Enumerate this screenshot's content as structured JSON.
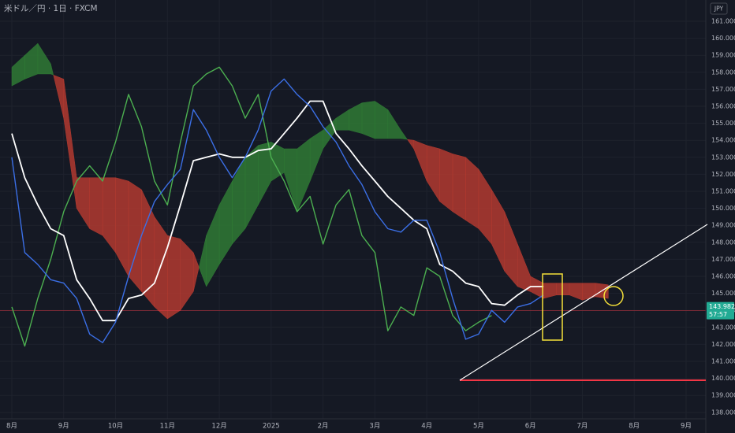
{
  "chart_data": {
    "type": "line",
    "title": "米ドル／円 · 1日 · FXCM",
    "axis_currency": "JPY",
    "categories": [
      "8月",
      null,
      null,
      null,
      "9月",
      null,
      null,
      null,
      "10月",
      null,
      null,
      null,
      "11月",
      null,
      null,
      null,
      "12月",
      null,
      null,
      null,
      "2025",
      null,
      null,
      null,
      "2月",
      null,
      null,
      null,
      "3月",
      null,
      null,
      null,
      "4月",
      null,
      null,
      null,
      "5月",
      null,
      null,
      null,
      "6月",
      null,
      null,
      null,
      "7月",
      null,
      null,
      null,
      "8月",
      null,
      null,
      null,
      "9月"
    ],
    "ylim": [
      137.62,
      162.25
    ],
    "yticks": [
      {
        "value": 138,
        "label": "138.000"
      },
      {
        "value": 139,
        "label": "139.000"
      },
      {
        "value": 140,
        "label": "140.000"
      },
      {
        "value": 141,
        "label": "141.000"
      },
      {
        "value": 142,
        "label": "142.000"
      },
      {
        "value": 143,
        "label": "143.000"
      },
      {
        "value": 144,
        "label": "144.000"
      },
      {
        "value": 145,
        "label": "145.000"
      },
      {
        "value": 146,
        "label": "146.000"
      },
      {
        "value": 147,
        "label": "147.000"
      },
      {
        "value": 148,
        "label": "148.000"
      },
      {
        "value": 149,
        "label": "149.000"
      },
      {
        "value": 150,
        "label": "150.000"
      },
      {
        "value": 151,
        "label": "151.000"
      },
      {
        "value": 152,
        "label": "152.000"
      },
      {
        "value": 153,
        "label": "153.000"
      },
      {
        "value": 154,
        "label": "154.000"
      },
      {
        "value": 155,
        "label": "155.000"
      },
      {
        "value": 156,
        "label": "156.000"
      },
      {
        "value": 157,
        "label": "157.000"
      },
      {
        "value": 158,
        "label": "158.000"
      },
      {
        "value": 159,
        "label": "159.000"
      },
      {
        "value": 160,
        "label": "160.000"
      },
      {
        "value": 161,
        "label": "161.000"
      }
    ],
    "grid": true,
    "cloud": {
      "up_color": "#2f7a35",
      "down_color": "#b23a30",
      "span_a": [
        158.3,
        159.0,
        159.7,
        158.5,
        155.3,
        150.0,
        148.8,
        148.4,
        147.4,
        146.0,
        145.1,
        144.2,
        143.5,
        144.0,
        145.1,
        148.4,
        150.2,
        151.6,
        153.0,
        153.7,
        153.9,
        153.5,
        153.5,
        154.1,
        154.6,
        155.3,
        155.8,
        156.2,
        156.3,
        155.8,
        154.6,
        153.5,
        151.6,
        150.4,
        149.8,
        149.3,
        148.8,
        147.9,
        146.3,
        145.4,
        145.1,
        144.7,
        144.9,
        144.9,
        144.6,
        144.8,
        144.7,
        null,
        null,
        null,
        null,
        null,
        null
      ],
      "span_b": [
        157.2,
        157.6,
        157.9,
        157.9,
        157.6,
        151.8,
        151.8,
        151.8,
        151.8,
        151.6,
        151.1,
        149.5,
        148.4,
        148.2,
        147.4,
        145.4,
        146.7,
        147.9,
        148.8,
        150.2,
        151.6,
        152.1,
        149.8,
        151.6,
        153.5,
        154.6,
        154.6,
        154.4,
        154.1,
        154.1,
        154.1,
        154.0,
        153.7,
        153.5,
        153.2,
        153.0,
        152.3,
        151.1,
        149.8,
        147.9,
        146.0,
        145.6,
        145.6,
        145.6,
        145.6,
        145.6,
        145.5,
        null,
        null,
        null,
        null,
        null,
        null
      ]
    },
    "series": [
      {
        "color": "#4caf50",
        "values": [
          144.2,
          141.9,
          144.7,
          147.0,
          149.8,
          151.6,
          152.5,
          151.6,
          153.9,
          156.7,
          154.8,
          151.6,
          150.2,
          153.9,
          157.2,
          157.9,
          158.3,
          157.2,
          155.3,
          156.7,
          153.0,
          151.6,
          149.8,
          150.7,
          147.9,
          150.2,
          151.1,
          148.4,
          147.4,
          142.8,
          144.2,
          143.7,
          146.5,
          146.0,
          143.7,
          142.8,
          143.3,
          143.7,
          null,
          null,
          null,
          null,
          null,
          null,
          null,
          null,
          null,
          null,
          null,
          null,
          null,
          null,
          null
        ]
      },
      {
        "color": "#ffffff",
        "values": [
          154.4,
          151.8,
          150.2,
          148.8,
          148.4,
          145.8,
          144.7,
          143.4,
          143.4,
          144.7,
          144.9,
          145.6,
          147.7,
          150.2,
          152.8,
          153.0,
          153.2,
          153.0,
          153.0,
          153.4,
          153.5,
          154.4,
          155.3,
          156.3,
          156.3,
          154.4,
          153.5,
          152.5,
          151.6,
          150.7,
          150.0,
          149.3,
          148.8,
          146.7,
          146.3,
          145.6,
          145.4,
          144.4,
          144.3,
          144.9,
          145.4,
          145.4,
          null,
          null,
          null,
          null,
          null,
          null,
          null,
          null,
          null,
          null,
          null
        ]
      },
      {
        "color": "#3b6fe6",
        "values": [
          153.0,
          147.4,
          146.7,
          145.8,
          145.6,
          144.7,
          142.6,
          142.1,
          143.3,
          146.0,
          148.4,
          150.4,
          151.4,
          152.3,
          155.8,
          154.6,
          153.0,
          151.8,
          153.0,
          154.6,
          156.9,
          157.6,
          156.7,
          156.0,
          154.8,
          153.9,
          152.5,
          151.4,
          149.8,
          148.8,
          148.6,
          149.3,
          149.3,
          147.4,
          144.7,
          142.3,
          142.6,
          144.0,
          143.3,
          144.2,
          144.4,
          144.9,
          null,
          null,
          null,
          null,
          null,
          null,
          null,
          null,
          null,
          null,
          null
        ]
      }
    ],
    "last_price": 143.982,
    "last_price_color": "#22ab94",
    "countdown": "57:57"
  }
}
